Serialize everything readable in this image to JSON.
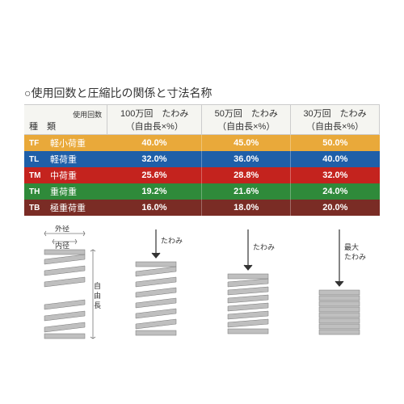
{
  "title": "○使用回数と圧縮比の関係と寸法名称",
  "header": {
    "type_label": "種　類",
    "use_count_label": "使用回数",
    "cols": [
      {
        "count": "100万回　たわみ",
        "sub": "（自由長×%）"
      },
      {
        "count": "50万回　たわみ",
        "sub": "（自由長×%）"
      },
      {
        "count": "30万回　たわみ",
        "sub": "（自由長×%）"
      }
    ]
  },
  "rows": [
    {
      "code": "TF",
      "desc": "軽小荷重",
      "bg": "#e9a93a",
      "values": [
        "40.0%",
        "45.0%",
        "50.0%"
      ]
    },
    {
      "code": "TL",
      "desc": "軽荷重",
      "bg": "#1f5fa8",
      "values": [
        "32.0%",
        "36.0%",
        "40.0%"
      ]
    },
    {
      "code": "TM",
      "desc": "中荷重",
      "bg": "#c4231e",
      "values": [
        "25.6%",
        "28.8%",
        "32.0%"
      ]
    },
    {
      "code": "TH",
      "desc": "重荷重",
      "bg": "#2f8a3a",
      "values": [
        "19.2%",
        "21.6%",
        "24.0%"
      ]
    },
    {
      "code": "TB",
      "desc": "極重荷重",
      "bg": "#7a2c25",
      "values": [
        "16.0%",
        "18.0%",
        "20.0%"
      ]
    }
  ],
  "diagram_labels": {
    "outer_dia": "外径",
    "inner_dia": "内径",
    "free_len": "自由長",
    "deflection": "たわみ",
    "max_deflection": "最大\nたわみ"
  },
  "theme": {
    "header_bg": "#f5f5f1",
    "grid": "#cccccc",
    "spring_fill": "#bfbfbf",
    "spring_stroke": "#777777",
    "text": "#333333"
  }
}
